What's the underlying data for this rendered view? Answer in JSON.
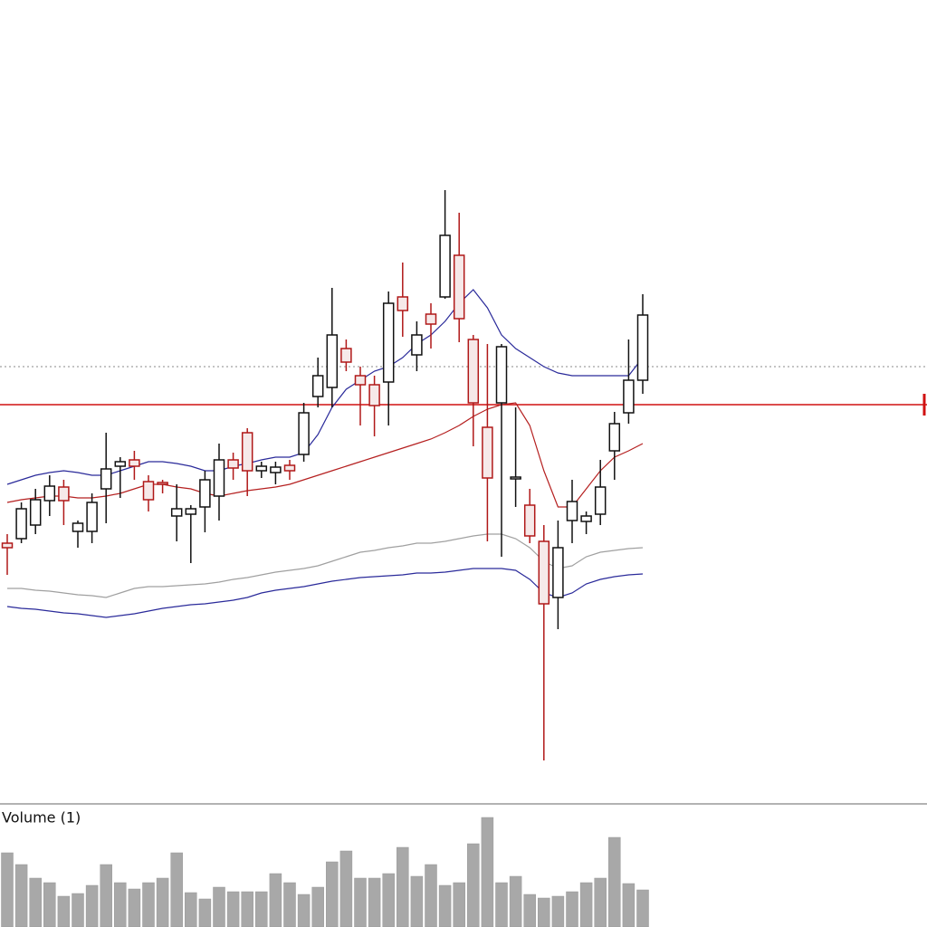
{
  "chart_data": {
    "type": "candlestick",
    "ylim": [
      0,
      880
    ],
    "categories": [
      null,
      null,
      null,
      null,
      null,
      null,
      null,
      null,
      null,
      null,
      null,
      null,
      null,
      null,
      null,
      null,
      null,
      null,
      null,
      null,
      null,
      null,
      null,
      null,
      null,
      null,
      null,
      null,
      null,
      null,
      null,
      null,
      null,
      null,
      null,
      null,
      null,
      null,
      null,
      null,
      null,
      null,
      null,
      null,
      null,
      null
    ],
    "open": [
      280,
      285,
      300,
      327,
      342,
      293,
      293,
      340,
      365,
      372,
      348,
      347,
      310,
      312,
      320,
      332,
      372,
      402,
      360,
      358,
      366,
      378,
      442,
      452,
      495,
      465,
      455,
      458,
      552,
      488,
      533,
      552,
      598,
      505,
      408,
      435,
      351,
      322,
      282,
      220,
      305,
      304,
      312,
      382,
      424,
      460
    ],
    "high": [
      290,
      325,
      340,
      355,
      350,
      305,
      335,
      402,
      375,
      382,
      355,
      350,
      345,
      322,
      360,
      390,
      380,
      407,
      370,
      370,
      372,
      435,
      485,
      562,
      505,
      475,
      465,
      558,
      590,
      525,
      545,
      670,
      645,
      510,
      500,
      500,
      430,
      340,
      300,
      305,
      350,
      315,
      372,
      425,
      505,
      555
    ],
    "low": [
      245,
      280,
      290,
      310,
      300,
      275,
      280,
      302,
      330,
      350,
      315,
      335,
      282,
      258,
      292,
      305,
      350,
      332,
      352,
      345,
      350,
      370,
      430,
      430,
      470,
      410,
      398,
      410,
      508,
      470,
      495,
      550,
      502,
      387,
      282,
      265,
      320,
      280,
      40,
      185,
      280,
      290,
      300,
      350,
      412,
      445
    ],
    "close": [
      275,
      318,
      328,
      343,
      327,
      302,
      325,
      362,
      370,
      365,
      328,
      345,
      318,
      318,
      350,
      372,
      363,
      360,
      365,
      364,
      360,
      424,
      465,
      510,
      480,
      455,
      432,
      545,
      537,
      510,
      522,
      620,
      528,
      435,
      352,
      497,
      353,
      288,
      213,
      275,
      326,
      310,
      342,
      412,
      460,
      532
    ],
    "up_color": "#111111",
    "down_color": "#b01818",
    "lines": [
      {
        "color": "#2a2a9a",
        "values": [
          345,
          350,
          355,
          358,
          360,
          358,
          355,
          355,
          360,
          365,
          370,
          370,
          368,
          365,
          360,
          360,
          365,
          368,
          372,
          375,
          375,
          380,
          400,
          430,
          450,
          460,
          470,
          475,
          485,
          500,
          510,
          525,
          545,
          560,
          540,
          510,
          495,
          485,
          475,
          468,
          465,
          465,
          465,
          465,
          465,
          485
        ]
      },
      {
        "color": "#b52020",
        "values": [
          325,
          328,
          330,
          332,
          332,
          330,
          330,
          332,
          335,
          340,
          345,
          345,
          342,
          340,
          335,
          332,
          335,
          338,
          340,
          342,
          345,
          350,
          355,
          360,
          365,
          370,
          375,
          380,
          385,
          390,
          395,
          402,
          410,
          420,
          428,
          433,
          435,
          410,
          360,
          320,
          320,
          340,
          360,
          375,
          382,
          390
        ]
      },
      {
        "color": "#a0a0a0",
        "values": [
          230,
          230,
          228,
          227,
          225,
          223,
          222,
          220,
          225,
          230,
          232,
          232,
          233,
          234,
          235,
          237,
          240,
          242,
          245,
          248,
          250,
          252,
          255,
          260,
          265,
          270,
          272,
          275,
          277,
          280,
          280,
          282,
          285,
          288,
          290,
          290,
          285,
          275,
          260,
          252,
          255,
          265,
          270,
          272,
          274,
          275
        ]
      },
      {
        "color": "#2a2a9a",
        "values": [
          210,
          208,
          207,
          205,
          203,
          202,
          200,
          198,
          200,
          202,
          205,
          208,
          210,
          212,
          213,
          215,
          217,
          220,
          225,
          228,
          230,
          232,
          235,
          238,
          240,
          242,
          243,
          244,
          245,
          247,
          247,
          248,
          250,
          252,
          252,
          252,
          250,
          240,
          225,
          220,
          225,
          235,
          240,
          243,
          245,
          246
        ]
      }
    ],
    "reference_lines": [
      {
        "value": 433,
        "color": "#d01010",
        "dashed": false
      },
      {
        "value": 475,
        "color": "#888888",
        "dashed": true
      }
    ],
    "volume": {
      "label": "Volume (1)",
      "color": "#a8a8a8",
      "ylim": [
        0,
        130
      ],
      "values": [
        82,
        69,
        54,
        49,
        34,
        37,
        46,
        69,
        49,
        42,
        49,
        54,
        82,
        38,
        31,
        44,
        39,
        39,
        39,
        59,
        49,
        36,
        44,
        72,
        84,
        54,
        54,
        59,
        88,
        56,
        69,
        46,
        49,
        92,
        121,
        49,
        56,
        36,
        32,
        34,
        39,
        49,
        54,
        99,
        48,
        41
      ]
    }
  }
}
